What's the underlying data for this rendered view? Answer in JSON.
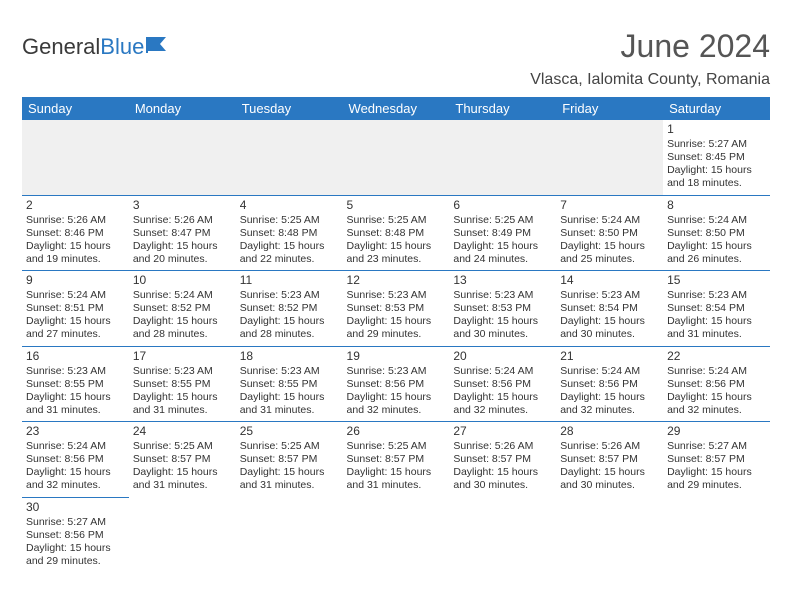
{
  "brand": {
    "text1": "General",
    "text2": "Blue"
  },
  "title": {
    "month": "June 2024",
    "location": "Vlasca, Ialomita County, Romania"
  },
  "colors": {
    "primary": "#2a78c2",
    "headerRowBg": "#f0f0f0",
    "text": "#333333"
  },
  "weekdays": [
    "Sunday",
    "Monday",
    "Tuesday",
    "Wednesday",
    "Thursday",
    "Friday",
    "Saturday"
  ],
  "weeks": [
    [
      null,
      null,
      null,
      null,
      null,
      null,
      {
        "n": "1",
        "sr": "Sunrise: 5:27 AM",
        "ss": "Sunset: 8:45 PM",
        "d1": "Daylight: 15 hours",
        "d2": "and 18 minutes."
      }
    ],
    [
      {
        "n": "2",
        "sr": "Sunrise: 5:26 AM",
        "ss": "Sunset: 8:46 PM",
        "d1": "Daylight: 15 hours",
        "d2": "and 19 minutes."
      },
      {
        "n": "3",
        "sr": "Sunrise: 5:26 AM",
        "ss": "Sunset: 8:47 PM",
        "d1": "Daylight: 15 hours",
        "d2": "and 20 minutes."
      },
      {
        "n": "4",
        "sr": "Sunrise: 5:25 AM",
        "ss": "Sunset: 8:48 PM",
        "d1": "Daylight: 15 hours",
        "d2": "and 22 minutes."
      },
      {
        "n": "5",
        "sr": "Sunrise: 5:25 AM",
        "ss": "Sunset: 8:48 PM",
        "d1": "Daylight: 15 hours",
        "d2": "and 23 minutes."
      },
      {
        "n": "6",
        "sr": "Sunrise: 5:25 AM",
        "ss": "Sunset: 8:49 PM",
        "d1": "Daylight: 15 hours",
        "d2": "and 24 minutes."
      },
      {
        "n": "7",
        "sr": "Sunrise: 5:24 AM",
        "ss": "Sunset: 8:50 PM",
        "d1": "Daylight: 15 hours",
        "d2": "and 25 minutes."
      },
      {
        "n": "8",
        "sr": "Sunrise: 5:24 AM",
        "ss": "Sunset: 8:50 PM",
        "d1": "Daylight: 15 hours",
        "d2": "and 26 minutes."
      }
    ],
    [
      {
        "n": "9",
        "sr": "Sunrise: 5:24 AM",
        "ss": "Sunset: 8:51 PM",
        "d1": "Daylight: 15 hours",
        "d2": "and 27 minutes."
      },
      {
        "n": "10",
        "sr": "Sunrise: 5:24 AM",
        "ss": "Sunset: 8:52 PM",
        "d1": "Daylight: 15 hours",
        "d2": "and 28 minutes."
      },
      {
        "n": "11",
        "sr": "Sunrise: 5:23 AM",
        "ss": "Sunset: 8:52 PM",
        "d1": "Daylight: 15 hours",
        "d2": "and 28 minutes."
      },
      {
        "n": "12",
        "sr": "Sunrise: 5:23 AM",
        "ss": "Sunset: 8:53 PM",
        "d1": "Daylight: 15 hours",
        "d2": "and 29 minutes."
      },
      {
        "n": "13",
        "sr": "Sunrise: 5:23 AM",
        "ss": "Sunset: 8:53 PM",
        "d1": "Daylight: 15 hours",
        "d2": "and 30 minutes."
      },
      {
        "n": "14",
        "sr": "Sunrise: 5:23 AM",
        "ss": "Sunset: 8:54 PM",
        "d1": "Daylight: 15 hours",
        "d2": "and 30 minutes."
      },
      {
        "n": "15",
        "sr": "Sunrise: 5:23 AM",
        "ss": "Sunset: 8:54 PM",
        "d1": "Daylight: 15 hours",
        "d2": "and 31 minutes."
      }
    ],
    [
      {
        "n": "16",
        "sr": "Sunrise: 5:23 AM",
        "ss": "Sunset: 8:55 PM",
        "d1": "Daylight: 15 hours",
        "d2": "and 31 minutes."
      },
      {
        "n": "17",
        "sr": "Sunrise: 5:23 AM",
        "ss": "Sunset: 8:55 PM",
        "d1": "Daylight: 15 hours",
        "d2": "and 31 minutes."
      },
      {
        "n": "18",
        "sr": "Sunrise: 5:23 AM",
        "ss": "Sunset: 8:55 PM",
        "d1": "Daylight: 15 hours",
        "d2": "and 31 minutes."
      },
      {
        "n": "19",
        "sr": "Sunrise: 5:23 AM",
        "ss": "Sunset: 8:56 PM",
        "d1": "Daylight: 15 hours",
        "d2": "and 32 minutes."
      },
      {
        "n": "20",
        "sr": "Sunrise: 5:24 AM",
        "ss": "Sunset: 8:56 PM",
        "d1": "Daylight: 15 hours",
        "d2": "and 32 minutes."
      },
      {
        "n": "21",
        "sr": "Sunrise: 5:24 AM",
        "ss": "Sunset: 8:56 PM",
        "d1": "Daylight: 15 hours",
        "d2": "and 32 minutes."
      },
      {
        "n": "22",
        "sr": "Sunrise: 5:24 AM",
        "ss": "Sunset: 8:56 PM",
        "d1": "Daylight: 15 hours",
        "d2": "and 32 minutes."
      }
    ],
    [
      {
        "n": "23",
        "sr": "Sunrise: 5:24 AM",
        "ss": "Sunset: 8:56 PM",
        "d1": "Daylight: 15 hours",
        "d2": "and 32 minutes."
      },
      {
        "n": "24",
        "sr": "Sunrise: 5:25 AM",
        "ss": "Sunset: 8:57 PM",
        "d1": "Daylight: 15 hours",
        "d2": "and 31 minutes."
      },
      {
        "n": "25",
        "sr": "Sunrise: 5:25 AM",
        "ss": "Sunset: 8:57 PM",
        "d1": "Daylight: 15 hours",
        "d2": "and 31 minutes."
      },
      {
        "n": "26",
        "sr": "Sunrise: 5:25 AM",
        "ss": "Sunset: 8:57 PM",
        "d1": "Daylight: 15 hours",
        "d2": "and 31 minutes."
      },
      {
        "n": "27",
        "sr": "Sunrise: 5:26 AM",
        "ss": "Sunset: 8:57 PM",
        "d1": "Daylight: 15 hours",
        "d2": "and 30 minutes."
      },
      {
        "n": "28",
        "sr": "Sunrise: 5:26 AM",
        "ss": "Sunset: 8:57 PM",
        "d1": "Daylight: 15 hours",
        "d2": "and 30 minutes."
      },
      {
        "n": "29",
        "sr": "Sunrise: 5:27 AM",
        "ss": "Sunset: 8:57 PM",
        "d1": "Daylight: 15 hours",
        "d2": "and 29 minutes."
      }
    ],
    [
      {
        "n": "30",
        "sr": "Sunrise: 5:27 AM",
        "ss": "Sunset: 8:56 PM",
        "d1": "Daylight: 15 hours",
        "d2": "and 29 minutes."
      },
      null,
      null,
      null,
      null,
      null,
      null
    ]
  ]
}
